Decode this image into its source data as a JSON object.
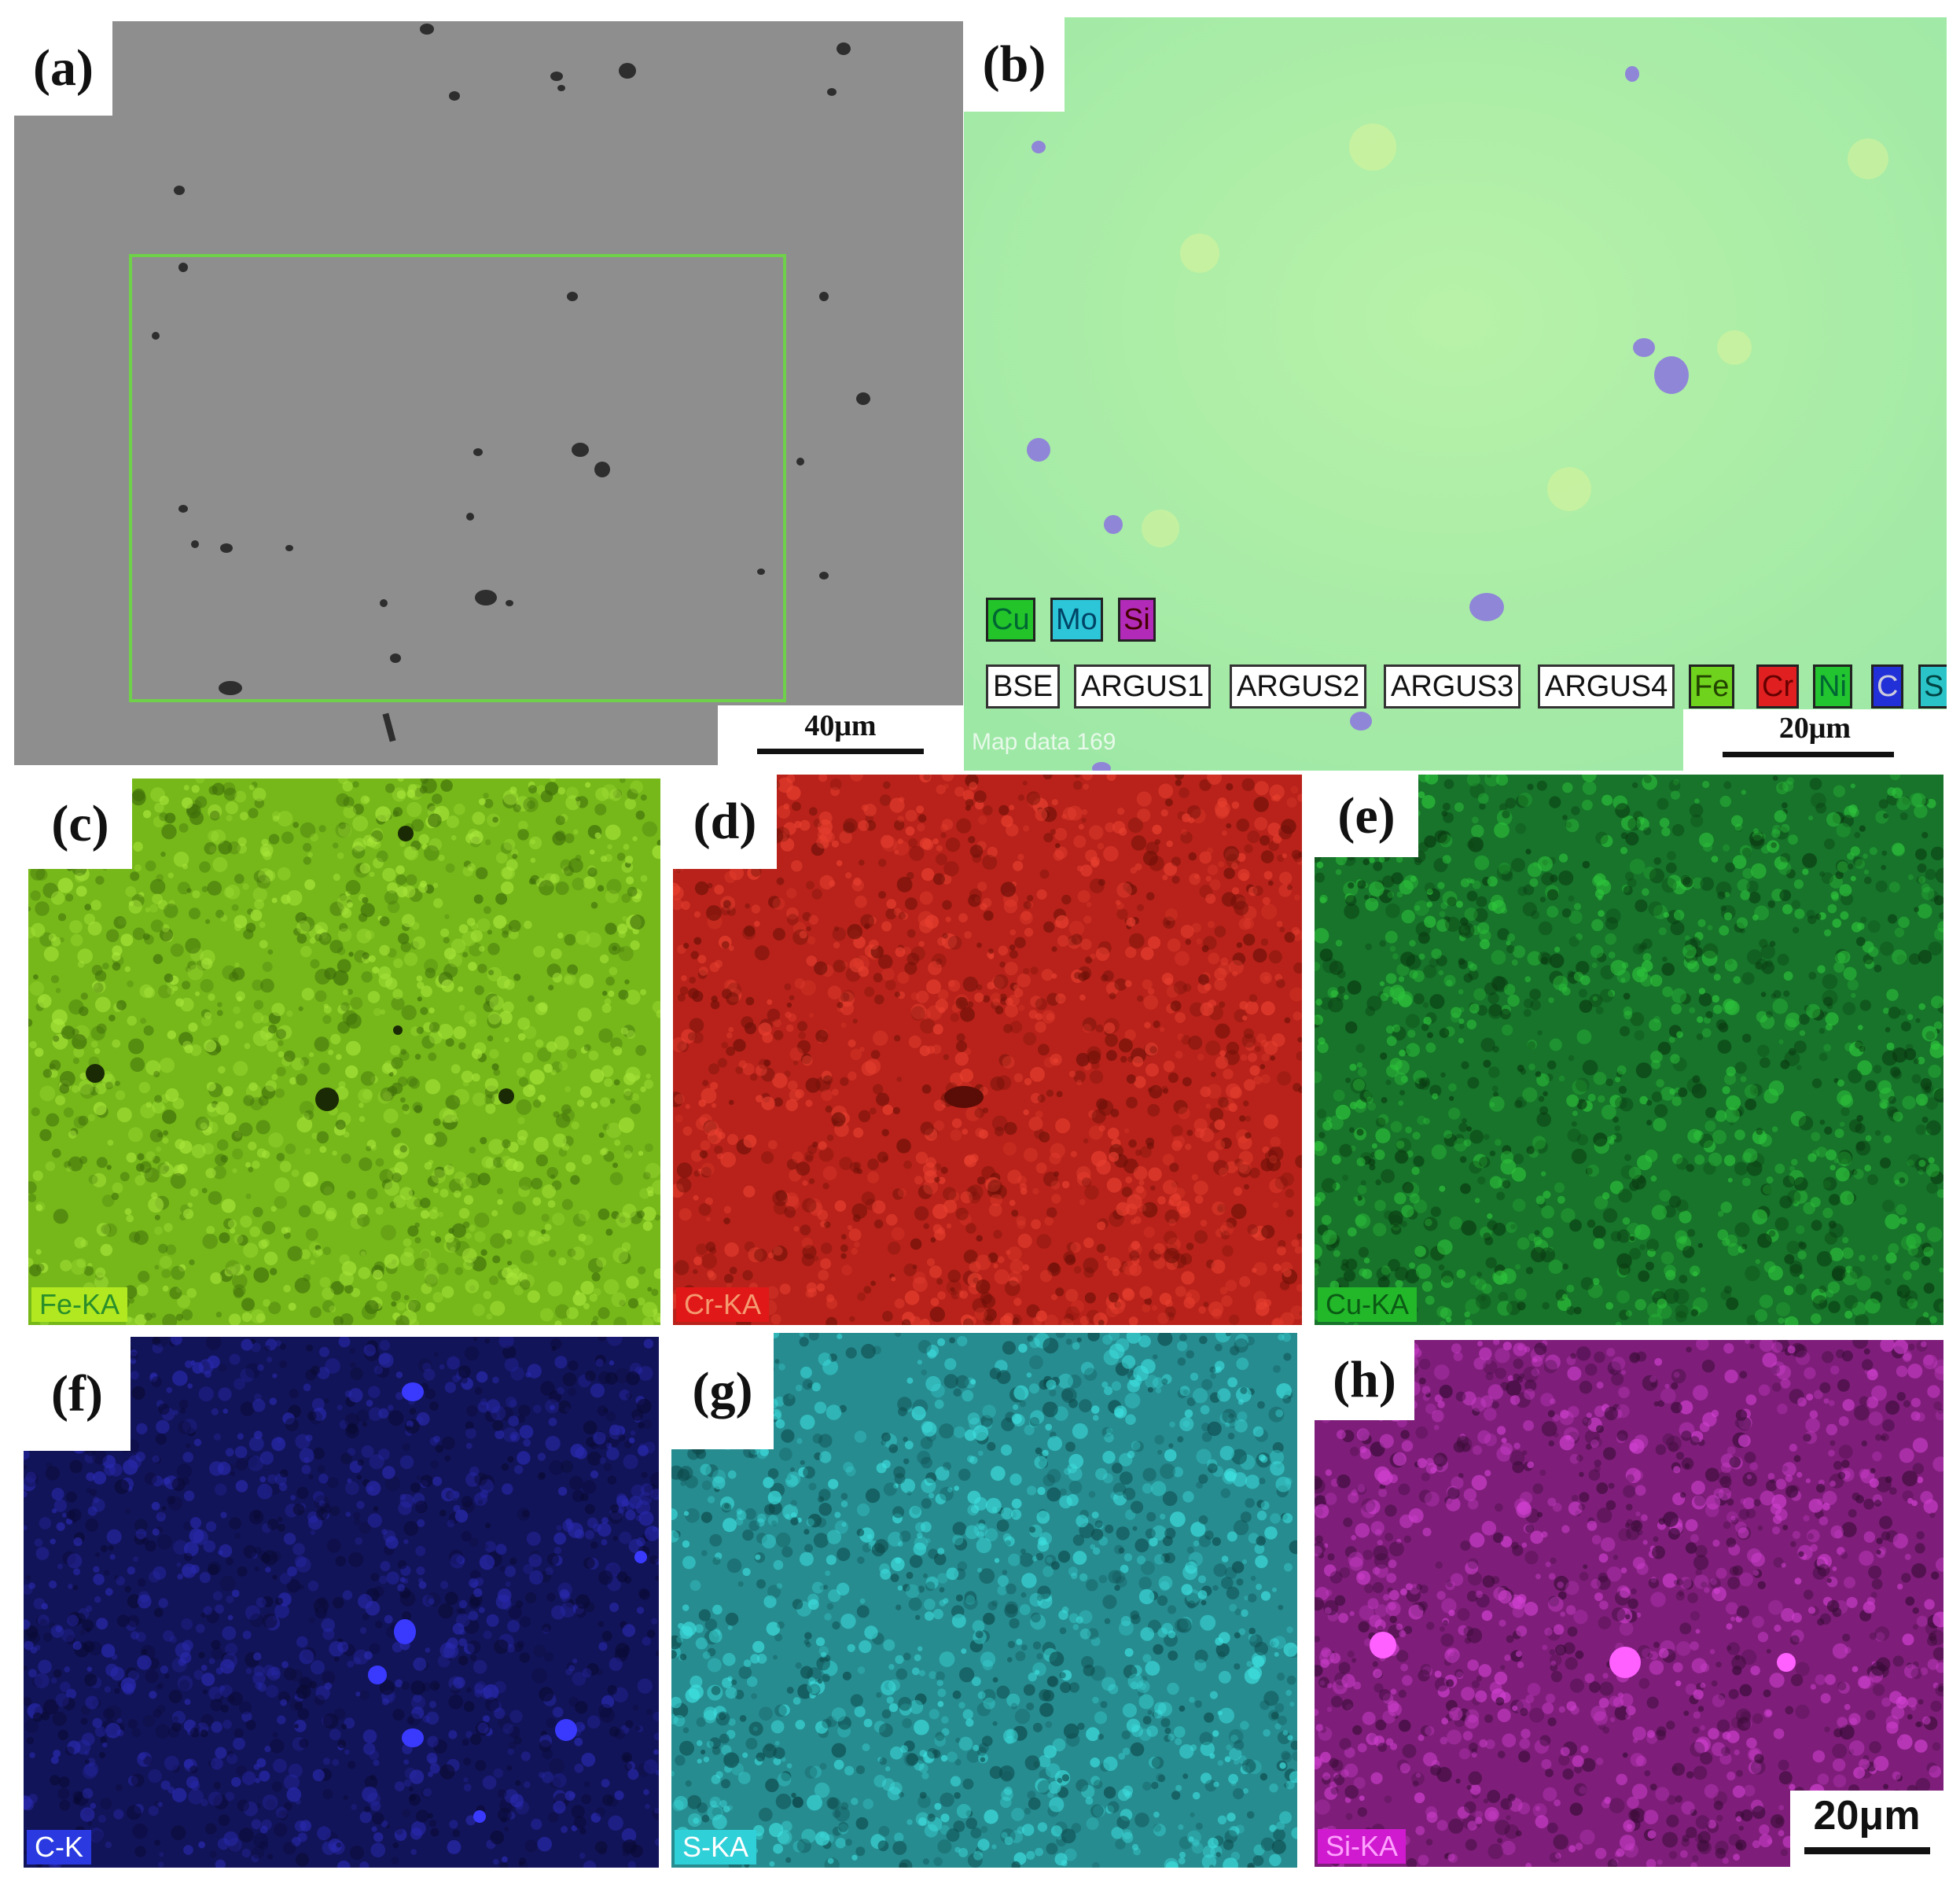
{
  "panels": {
    "a": {
      "label": "(a)",
      "scale": "40μm"
    },
    "b": {
      "label": "(b)",
      "scale": "20μm",
      "legend_row1": [
        "Cu",
        "Mo",
        "Si"
      ],
      "legend_row2_boxes": [
        "BSE",
        "ARGUS1",
        "ARGUS2",
        "ARGUS3",
        "ARGUS4"
      ],
      "legend_row2_chips": [
        "Fe",
        "Cr",
        "Ni",
        "C",
        "S"
      ],
      "watermark": "Map data 169"
    },
    "c": {
      "label": "(c)",
      "tag": "Fe-KA"
    },
    "d": {
      "label": "(d)",
      "tag": "Cr-KA"
    },
    "e": {
      "label": "(e)",
      "tag": "Cu-KA"
    },
    "f": {
      "label": "(f)",
      "tag": "C-K"
    },
    "g": {
      "label": "(g)",
      "tag": "S-KA"
    },
    "h": {
      "label": "(h)",
      "tag": "Si-KA",
      "scale": "20μm"
    }
  },
  "colors": {
    "sem_gray": "#8d8d8d",
    "eds_mix": "#a8f0a0",
    "fe": "#7ec21a",
    "cr": "#c8261c",
    "cu": "#1f8f2a",
    "c": "#16176a",
    "s": "#2fb5b8",
    "si": "#a0299c"
  }
}
